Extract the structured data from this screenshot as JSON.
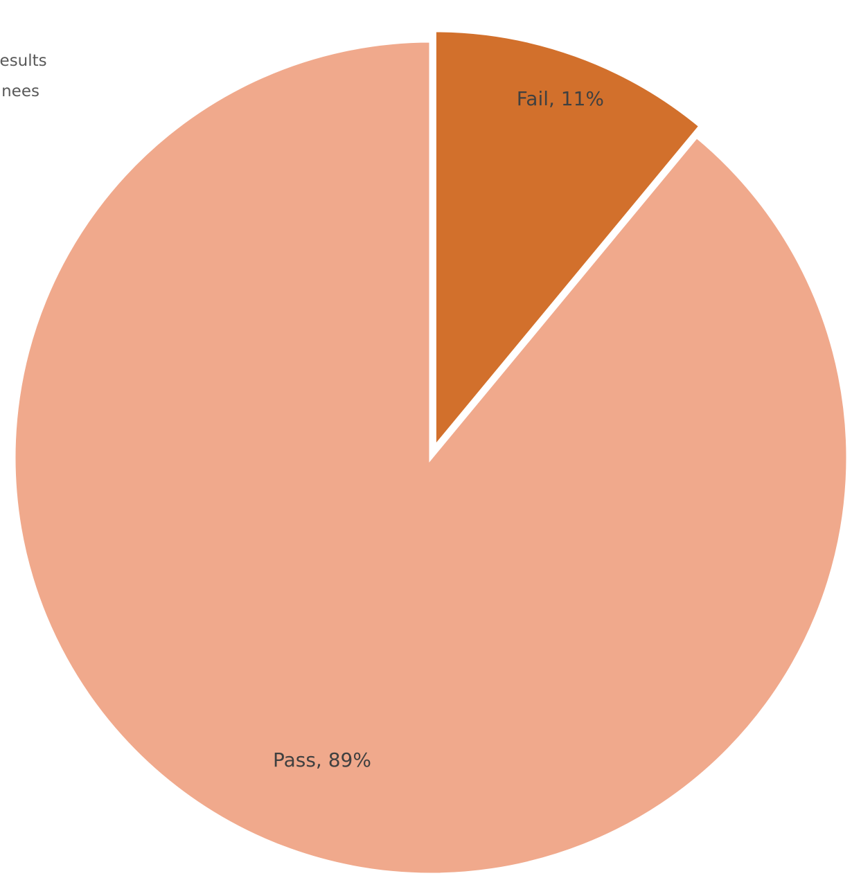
{
  "chart_data": {
    "type": "pie",
    "title_lines": [
      "Test Results",
      "of Trainees"
    ],
    "start_angle_deg": 0,
    "slices": [
      {
        "label": "Fail",
        "value": 11,
        "display": "Fail, 11%",
        "color": "#D2702C",
        "exploded": true
      },
      {
        "label": "Pass",
        "value": 89,
        "display": "Pass, 89%",
        "color": "#F0A98C",
        "exploded": false
      }
    ],
    "legend": "none"
  }
}
